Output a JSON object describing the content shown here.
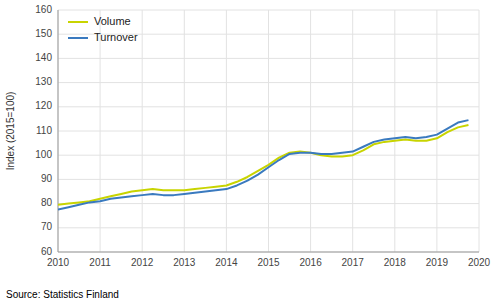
{
  "chart_data": {
    "type": "line",
    "y_label": "Index (2015=100)",
    "annotations": [
      "Source: Statistics Finland"
    ],
    "x": [
      2010.0,
      2010.25,
      2010.5,
      2010.75,
      2011.0,
      2011.25,
      2011.5,
      2011.75,
      2012.0,
      2012.25,
      2012.5,
      2012.75,
      2013.0,
      2013.25,
      2013.5,
      2013.75,
      2014.0,
      2014.25,
      2014.5,
      2014.75,
      2015.0,
      2015.25,
      2015.5,
      2015.75,
      2016.0,
      2016.25,
      2016.5,
      2016.75,
      2017.0,
      2017.25,
      2017.5,
      2017.75,
      2018.0,
      2018.25,
      2018.5,
      2018.75,
      2019.0,
      2019.25,
      2019.5,
      2019.75
    ],
    "series": [
      {
        "name": "Volume",
        "color": "#c8d400",
        "values": [
          79.5,
          80.0,
          80.5,
          81.0,
          82.0,
          83.0,
          84.0,
          85.0,
          85.5,
          86.0,
          85.5,
          85.5,
          85.5,
          86.0,
          86.5,
          87.0,
          87.5,
          89.0,
          91.0,
          93.5,
          96.0,
          99.0,
          101.0,
          101.5,
          101.0,
          100.0,
          99.5,
          99.5,
          100.0,
          102.0,
          104.5,
          105.5,
          106.0,
          106.5,
          106.0,
          106.0,
          107.0,
          109.5,
          111.5,
          112.5
        ]
      },
      {
        "name": "Turnover",
        "color": "#3a7abf",
        "values": [
          77.5,
          78.5,
          79.5,
          80.5,
          81.0,
          82.0,
          82.5,
          83.0,
          83.5,
          84.0,
          83.5,
          83.5,
          84.0,
          84.5,
          85.0,
          85.5,
          86.0,
          87.5,
          89.5,
          92.0,
          95.0,
          98.0,
          100.5,
          101.0,
          101.0,
          100.5,
          100.5,
          101.0,
          101.5,
          103.5,
          105.5,
          106.5,
          107.0,
          107.5,
          107.0,
          107.5,
          108.5,
          111.0,
          113.5,
          114.5
        ]
      }
    ],
    "xlim": [
      2010,
      2020
    ],
    "ylim": [
      60,
      160
    ],
    "xticks": [
      2010,
      2011,
      2012,
      2013,
      2014,
      2015,
      2016,
      2017,
      2018,
      2019,
      2020
    ],
    "yticks": [
      60,
      70,
      80,
      90,
      100,
      110,
      120,
      130,
      140,
      150,
      160
    ],
    "grid": true,
    "legend": "upper left"
  }
}
